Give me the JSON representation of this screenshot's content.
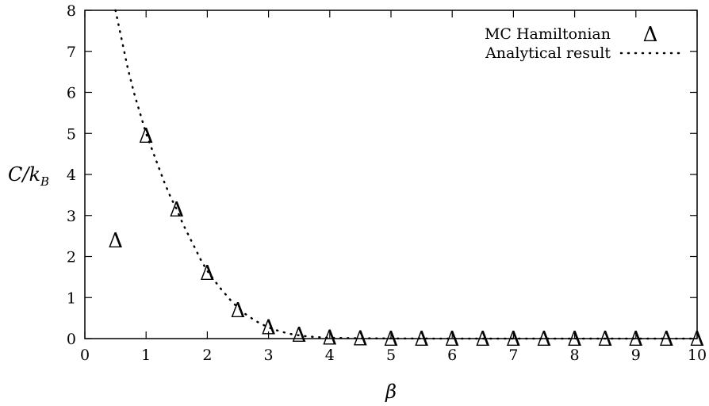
{
  "chart_data": {
    "type": "scatter",
    "title": "",
    "xlabel": "β",
    "ylabel": {
      "main": "C/k",
      "sub": "B"
    },
    "xlim": [
      0,
      10
    ],
    "ylim": [
      0,
      8
    ],
    "xticks": [
      0,
      1,
      2,
      3,
      4,
      5,
      6,
      7,
      8,
      9,
      10
    ],
    "yticks": [
      0,
      1,
      2,
      3,
      4,
      5,
      6,
      7,
      8
    ],
    "grid": false,
    "legend_position": "top-right",
    "series": [
      {
        "name": "MC Hamiltonian",
        "type": "scatter",
        "marker": "Δ",
        "x": [
          0.5,
          1.0,
          1.5,
          2.0,
          2.5,
          3.0,
          3.5,
          4.0,
          4.5,
          5.0,
          5.5,
          6.0,
          6.5,
          7.0,
          7.5,
          8.0,
          8.5,
          9.0,
          9.5,
          10.0
        ],
        "y": [
          2.4,
          4.95,
          3.15,
          1.6,
          0.7,
          0.28,
          0.1,
          0.03,
          0.01,
          0.0,
          0.0,
          0.0,
          0.0,
          0.0,
          0.0,
          0.0,
          0.0,
          0.0,
          0.0,
          0.0
        ]
      },
      {
        "name": "Analytical result",
        "type": "line",
        "style": "dotted",
        "x": [
          0.5,
          0.6,
          0.7,
          0.8,
          0.9,
          1.0,
          1.1,
          1.2,
          1.3,
          1.4,
          1.5,
          1.6,
          1.7,
          1.8,
          1.9,
          2.0,
          2.2,
          2.4,
          2.6,
          2.8,
          3.0,
          3.2,
          3.4,
          3.6,
          3.8,
          4.0,
          4.5,
          5.0,
          5.5,
          6.0,
          7.0,
          8.0,
          9.0,
          10.0
        ],
        "y": [
          8.0,
          7.3,
          6.6,
          6.0,
          5.5,
          5.0,
          4.6,
          4.2,
          3.8,
          3.45,
          3.15,
          2.8,
          2.5,
          2.2,
          1.9,
          1.65,
          1.25,
          0.9,
          0.62,
          0.42,
          0.27,
          0.17,
          0.1,
          0.06,
          0.035,
          0.02,
          0.008,
          0.003,
          0.001,
          0.0,
          0.0,
          0.0,
          0.0,
          0.0
        ]
      }
    ]
  }
}
